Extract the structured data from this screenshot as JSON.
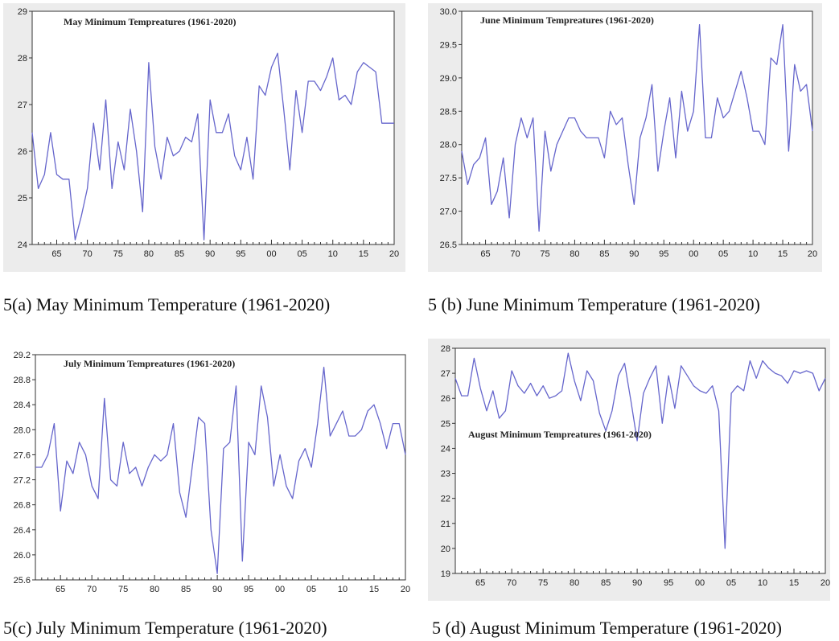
{
  "chart_data": [
    {
      "type": "line",
      "title": "May Minimum Tempreatures (1961-2020)",
      "caption": "5(a) May Minimum Temperature (1961-2020)",
      "x_tick_labels": [
        "65",
        "70",
        "75",
        "80",
        "85",
        "90",
        "95",
        "00",
        "05",
        "10",
        "15",
        "20"
      ],
      "y_tick_labels": [
        "24",
        "25",
        "26",
        "27",
        "28",
        "29"
      ],
      "ylim": [
        24,
        29
      ],
      "xlim": [
        1961,
        2020
      ],
      "line_color": "#6666cc",
      "series": [
        {
          "x": [
            1961,
            1962,
            1963,
            1964,
            1965,
            1966,
            1967,
            1968,
            1969,
            1970,
            1971,
            1972,
            1973,
            1974,
            1975,
            1976,
            1977,
            1978,
            1979,
            1980,
            1981,
            1982,
            1983,
            1984,
            1985,
            1986,
            1987,
            1988,
            1989,
            1990,
            1991,
            1992,
            1993,
            1994,
            1995,
            1996,
            1997,
            1998,
            1999,
            2000,
            2001,
            2002,
            2003,
            2004,
            2005,
            2006,
            2007,
            2008,
            2009,
            2010,
            2011,
            2012,
            2013,
            2014,
            2015,
            2016,
            2017,
            2018,
            2019,
            2020
          ],
          "values": [
            26.4,
            25.2,
            25.5,
            26.4,
            25.5,
            25.4,
            25.4,
            24.1,
            24.6,
            25.2,
            26.6,
            25.6,
            27.1,
            25.2,
            26.2,
            25.6,
            26.9,
            26.0,
            24.7,
            27.9,
            26.1,
            25.4,
            26.3,
            25.9,
            26.0,
            26.3,
            26.2,
            26.8,
            24.1,
            27.1,
            26.4,
            26.4,
            26.8,
            25.9,
            25.6,
            26.3,
            25.4,
            27.4,
            27.2,
            27.8,
            28.1,
            26.9,
            25.6,
            27.3,
            26.4,
            27.5,
            27.5,
            27.3,
            27.6,
            28.0,
            27.1,
            27.2,
            27.0,
            27.7,
            27.9,
            27.8,
            27.7,
            26.6,
            26.6,
            26.6
          ]
        }
      ]
    },
    {
      "type": "line",
      "title": "June Minimum Tempreatures (1961-2020)",
      "caption": "5 (b) June Minimum Temperature (1961-2020)",
      "x_tick_labels": [
        "65",
        "70",
        "75",
        "80",
        "85",
        "90",
        "95",
        "00",
        "05",
        "10",
        "15",
        "20"
      ],
      "y_tick_labels": [
        "26.5",
        "27.0",
        "27.5",
        "28.0",
        "28.5",
        "29.0",
        "29.5",
        "30.0"
      ],
      "ylim": [
        26.5,
        30.0
      ],
      "xlim": [
        1961,
        2020
      ],
      "line_color": "#6666cc",
      "series": [
        {
          "x": [
            1961,
            1962,
            1963,
            1964,
            1965,
            1966,
            1967,
            1968,
            1969,
            1970,
            1971,
            1972,
            1973,
            1974,
            1975,
            1976,
            1977,
            1978,
            1979,
            1980,
            1981,
            1982,
            1983,
            1984,
            1985,
            1986,
            1987,
            1988,
            1989,
            1990,
            1991,
            1992,
            1993,
            1994,
            1995,
            1996,
            1997,
            1998,
            1999,
            2000,
            2001,
            2002,
            2003,
            2004,
            2005,
            2006,
            2007,
            2008,
            2009,
            2010,
            2011,
            2012,
            2013,
            2014,
            2015,
            2016,
            2017,
            2018,
            2019,
            2020
          ],
          "values": [
            27.9,
            27.4,
            27.7,
            27.8,
            28.1,
            27.1,
            27.3,
            27.8,
            26.9,
            28.0,
            28.4,
            28.1,
            28.4,
            26.7,
            28.2,
            27.6,
            28.0,
            28.2,
            28.4,
            28.4,
            28.2,
            28.1,
            28.1,
            28.1,
            27.8,
            28.5,
            28.3,
            28.4,
            27.7,
            27.1,
            28.1,
            28.4,
            28.9,
            27.6,
            28.2,
            28.7,
            27.8,
            28.8,
            28.2,
            28.5,
            29.8,
            28.1,
            28.1,
            28.7,
            28.4,
            28.5,
            28.8,
            29.1,
            28.7,
            28.2,
            28.2,
            28.0,
            29.3,
            29.2,
            29.8,
            27.9,
            29.2,
            28.8,
            28.9,
            28.2
          ]
        }
      ]
    },
    {
      "type": "line",
      "title": "July Minimum Tempreatures (1961-2020)",
      "caption": "5(c) July Minimum Temperature (1961-2020)",
      "x_tick_labels": [
        "65",
        "70",
        "75",
        "80",
        "85",
        "90",
        "95",
        "00",
        "05",
        "10",
        "15",
        "20"
      ],
      "y_tick_labels": [
        "25.6",
        "26.0",
        "26.4",
        "26.8",
        "27.2",
        "27.6",
        "28.0",
        "28.4",
        "28.8",
        "29.2"
      ],
      "ylim": [
        25.6,
        29.2
      ],
      "xlim": [
        1961,
        2020
      ],
      "line_color": "#6666cc",
      "series": [
        {
          "x": [
            1961,
            1962,
            1963,
            1964,
            1965,
            1966,
            1967,
            1968,
            1969,
            1970,
            1971,
            1972,
            1973,
            1974,
            1975,
            1976,
            1977,
            1978,
            1979,
            1980,
            1981,
            1982,
            1983,
            1984,
            1985,
            1986,
            1987,
            1988,
            1989,
            1990,
            1991,
            1992,
            1993,
            1994,
            1995,
            1996,
            1997,
            1998,
            1999,
            2000,
            2001,
            2002,
            2003,
            2004,
            2005,
            2006,
            2007,
            2008,
            2009,
            2010,
            2011,
            2012,
            2013,
            2014,
            2015,
            2016,
            2017,
            2018,
            2019,
            2020
          ],
          "values": [
            27.4,
            27.4,
            27.6,
            28.1,
            26.7,
            27.5,
            27.3,
            27.8,
            27.6,
            27.1,
            26.9,
            28.5,
            27.2,
            27.1,
            27.8,
            27.3,
            27.4,
            27.1,
            27.4,
            27.6,
            27.5,
            27.6,
            28.1,
            27.0,
            26.6,
            27.4,
            28.2,
            28.1,
            26.4,
            25.7,
            27.7,
            27.8,
            28.7,
            25.9,
            27.8,
            27.6,
            28.7,
            28.2,
            27.1,
            27.6,
            27.1,
            26.9,
            27.5,
            27.7,
            27.4,
            28.1,
            29.0,
            27.9,
            28.1,
            28.3,
            27.9,
            27.9,
            28.0,
            28.3,
            28.4,
            28.1,
            27.7,
            28.1,
            28.1,
            27.6
          ]
        }
      ]
    },
    {
      "type": "line",
      "title": "August Minimum Tempreatures (1961-2020)",
      "caption": "5 (d) August Minimum Temperature (1961-2020)",
      "x_tick_labels": [
        "65",
        "70",
        "75",
        "80",
        "85",
        "90",
        "95",
        "00",
        "05",
        "10",
        "15",
        "20"
      ],
      "y_tick_labels": [
        "19",
        "20",
        "21",
        "22",
        "23",
        "24",
        "25",
        "26",
        "27",
        "28"
      ],
      "ylim": [
        19,
        28
      ],
      "xlim": [
        1961,
        2020
      ],
      "line_color": "#6666cc",
      "series": [
        {
          "x": [
            1961,
            1962,
            1963,
            1964,
            1965,
            1966,
            1967,
            1968,
            1969,
            1970,
            1971,
            1972,
            1973,
            1974,
            1975,
            1976,
            1977,
            1978,
            1979,
            1980,
            1981,
            1982,
            1983,
            1984,
            1985,
            1986,
            1987,
            1988,
            1989,
            1990,
            1991,
            1992,
            1993,
            1994,
            1995,
            1996,
            1997,
            1998,
            1999,
            2000,
            2001,
            2002,
            2003,
            2004,
            2005,
            2006,
            2007,
            2008,
            2009,
            2010,
            2011,
            2012,
            2013,
            2014,
            2015,
            2016,
            2017,
            2018,
            2019,
            2020
          ],
          "values": [
            26.8,
            26.1,
            26.1,
            27.6,
            26.4,
            25.5,
            26.3,
            25.2,
            25.5,
            27.1,
            26.5,
            26.2,
            26.6,
            26.1,
            26.5,
            26.0,
            26.1,
            26.3,
            27.8,
            26.7,
            25.9,
            27.1,
            26.7,
            25.4,
            24.7,
            25.5,
            26.9,
            27.4,
            25.9,
            24.3,
            26.2,
            26.8,
            27.3,
            25.0,
            26.9,
            25.6,
            27.3,
            26.9,
            26.5,
            26.3,
            26.2,
            26.5,
            25.5,
            20.0,
            26.2,
            26.5,
            26.3,
            27.5,
            26.8,
            27.5,
            27.2,
            27.0,
            26.9,
            26.6,
            27.1,
            27.0,
            27.1,
            27.0,
            26.3,
            26.8
          ]
        }
      ]
    }
  ]
}
